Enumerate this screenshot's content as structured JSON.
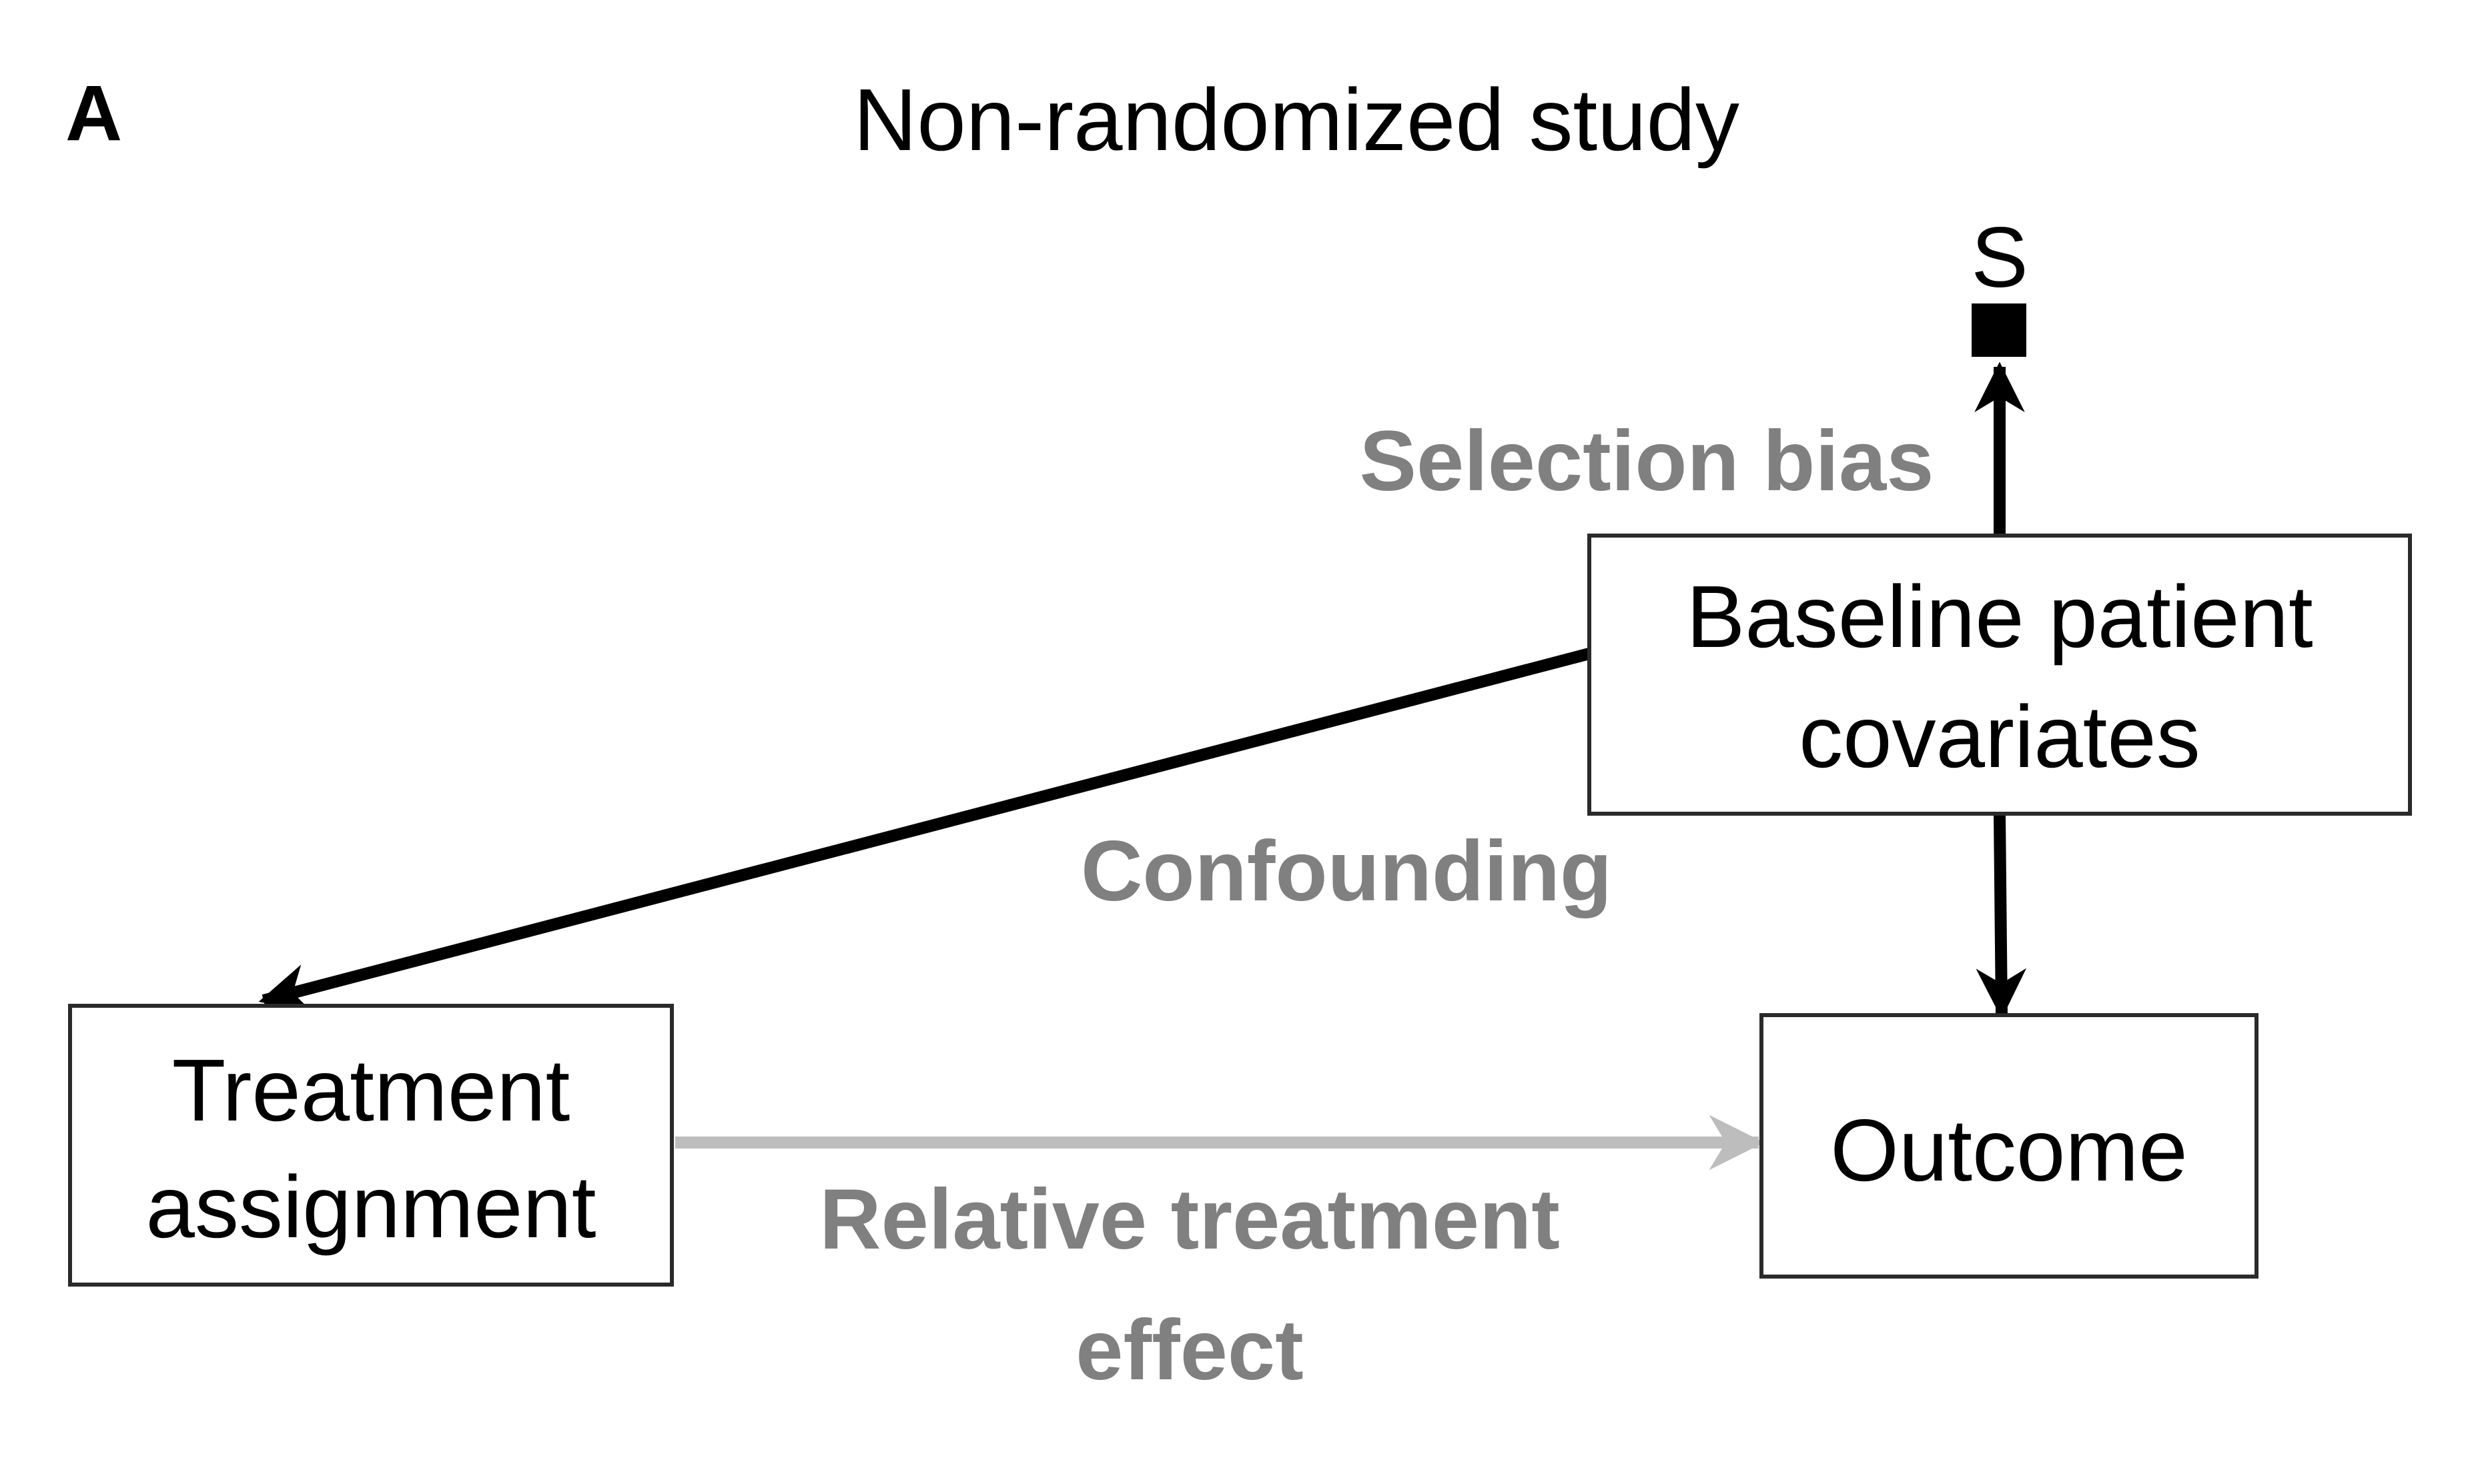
{
  "panel_letter": "A",
  "title": "Non-randomized study",
  "selection_node": "S",
  "nodes": {
    "baseline": {
      "line1": "Baseline patient",
      "line2": "covariates"
    },
    "treatment": {
      "line1": "Treatment",
      "line2": "assignment"
    },
    "outcome": {
      "label": "Outcome"
    }
  },
  "edge_labels": {
    "selection_bias": "Selection bias",
    "confounding": "Confounding",
    "relative_effect_line1": "Relative treatment",
    "relative_effect_line2": "effect"
  },
  "colors": {
    "causal_arrow": "#000000",
    "effect_arrow": "#bdbdbd",
    "edge_label_text": "#808080"
  }
}
